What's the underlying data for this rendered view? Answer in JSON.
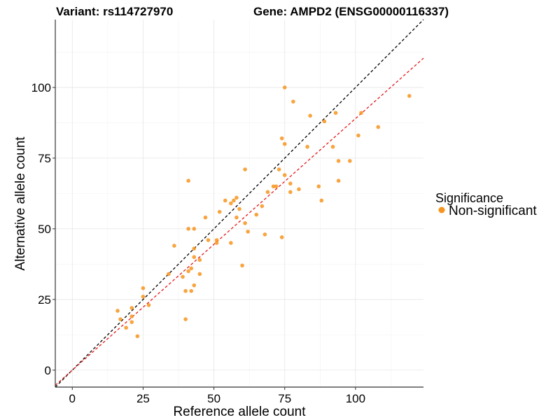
{
  "chart_data": {
    "type": "scatter",
    "title_left": "Variant: rs114727970",
    "title_right": "Gene: AMPD2 (ENSG00000116337)",
    "xlabel": "Reference allele count",
    "ylabel": "Alternative allele count",
    "xlim": [
      -6,
      124
    ],
    "ylim": [
      -6,
      124
    ],
    "x_ticks": [
      0,
      25,
      50,
      75,
      100
    ],
    "y_ticks": [
      0,
      25,
      50,
      75,
      100
    ],
    "grid": true,
    "legend": {
      "title": "Significance",
      "position": "right",
      "entries": [
        "Non-significant"
      ]
    },
    "reference_lines": [
      {
        "name": "identity",
        "slope": 1.0,
        "intercept": 0,
        "color": "#000000",
        "dashed": true
      },
      {
        "name": "fit",
        "slope": 0.89,
        "intercept": 0,
        "color": "#e41a1c",
        "dashed": true
      }
    ],
    "series": [
      {
        "name": "Non-significant",
        "color": "#f7941d",
        "points": [
          [
            16,
            21
          ],
          [
            17,
            18
          ],
          [
            19,
            15
          ],
          [
            21,
            22
          ],
          [
            21,
            17
          ],
          [
            21,
            19
          ],
          [
            23,
            12
          ],
          [
            25,
            29
          ],
          [
            25,
            26
          ],
          [
            27,
            23
          ],
          [
            34,
            34
          ],
          [
            36,
            44
          ],
          [
            39,
            33
          ],
          [
            40,
            18
          ],
          [
            40,
            28
          ],
          [
            41,
            35
          ],
          [
            41,
            67
          ],
          [
            41,
            50
          ],
          [
            42,
            36
          ],
          [
            42,
            28
          ],
          [
            43,
            50
          ],
          [
            43,
            43
          ],
          [
            43,
            40
          ],
          [
            43,
            30
          ],
          [
            45,
            34
          ],
          [
            45,
            39
          ],
          [
            47,
            54
          ],
          [
            48,
            46
          ],
          [
            51,
            45
          ],
          [
            51,
            46
          ],
          [
            52,
            56
          ],
          [
            54,
            60
          ],
          [
            56,
            59
          ],
          [
            56,
            45
          ],
          [
            57,
            60
          ],
          [
            58,
            54
          ],
          [
            58,
            61
          ],
          [
            59,
            57
          ],
          [
            60,
            37
          ],
          [
            61,
            52
          ],
          [
            61,
            71
          ],
          [
            62,
            49
          ],
          [
            65,
            55
          ],
          [
            67,
            58
          ],
          [
            68,
            48
          ],
          [
            69,
            63
          ],
          [
            71,
            65
          ],
          [
            72,
            65
          ],
          [
            73,
            71
          ],
          [
            74,
            82
          ],
          [
            74,
            47
          ],
          [
            75,
            80
          ],
          [
            75,
            69
          ],
          [
            75,
            100
          ],
          [
            77,
            66
          ],
          [
            77,
            63
          ],
          [
            78,
            95
          ],
          [
            80,
            64
          ],
          [
            83,
            79
          ],
          [
            84,
            90
          ],
          [
            87,
            65
          ],
          [
            88,
            60
          ],
          [
            89,
            88
          ],
          [
            92,
            79
          ],
          [
            93,
            91
          ],
          [
            94,
            74
          ],
          [
            94,
            67
          ],
          [
            98,
            74
          ],
          [
            101,
            83
          ],
          [
            102,
            91
          ],
          [
            108,
            86
          ],
          [
            119,
            97
          ]
        ]
      }
    ]
  }
}
